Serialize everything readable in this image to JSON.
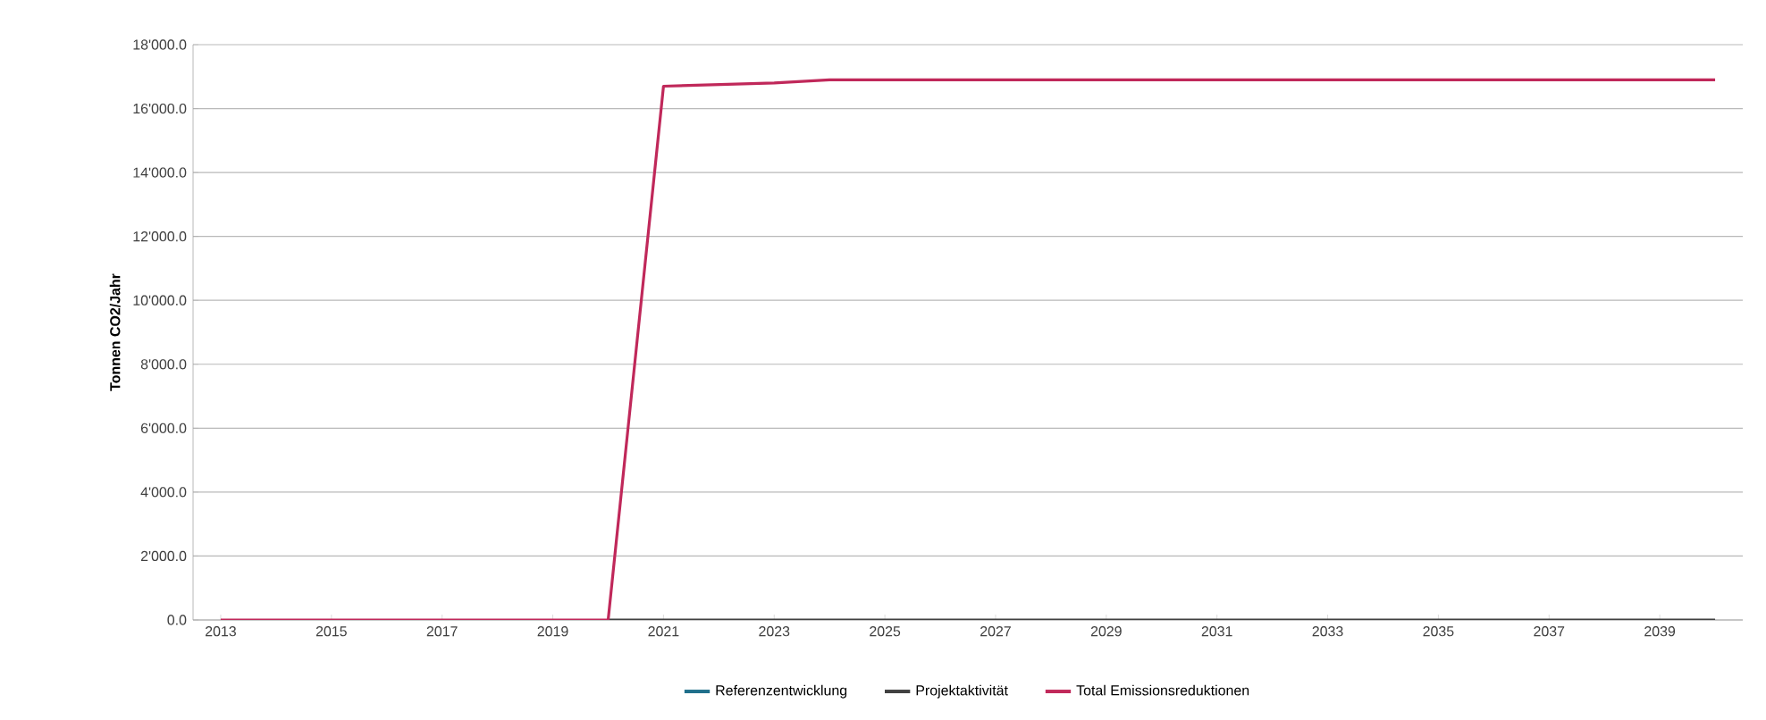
{
  "chart_data": {
    "type": "line",
    "ylabel": "Tonnen CO2/Jahr",
    "x": [
      2013,
      2014,
      2015,
      2016,
      2017,
      2018,
      2019,
      2020,
      2021,
      2022,
      2023,
      2024,
      2025,
      2026,
      2027,
      2028,
      2029,
      2030,
      2031,
      2032,
      2033,
      2034,
      2035,
      2036,
      2037,
      2038,
      2039,
      2040
    ],
    "series": [
      {
        "name": "Referenzentwicklung",
        "color": "#1f6f8b",
        "values": [
          null,
          null,
          null,
          null,
          null,
          null,
          null,
          null,
          null,
          null,
          null,
          null,
          null,
          null,
          null,
          null,
          null,
          null,
          null,
          null,
          null,
          null,
          null,
          null,
          null,
          null,
          null,
          null
        ]
      },
      {
        "name": "Projektaktivität",
        "color": "#404040",
        "values": [
          null,
          null,
          null,
          null,
          null,
          null,
          null,
          0,
          0,
          0,
          0,
          0,
          0,
          0,
          0,
          0,
          0,
          0,
          0,
          0,
          0,
          0,
          0,
          0,
          0,
          0,
          0,
          0
        ]
      },
      {
        "name": "Total Emissionsreduktionen",
        "color": "#c0285a",
        "values": [
          0,
          0,
          0,
          0,
          0,
          0,
          0,
          0,
          16700,
          16750,
          16800,
          16900,
          16900,
          16900,
          16900,
          16900,
          16900,
          16900,
          16900,
          16900,
          16900,
          16900,
          16900,
          16900,
          16900,
          16900,
          16900,
          16900
        ]
      }
    ],
    "xlim": [
      2012.5,
      2040.5
    ],
    "xticks": [
      2013,
      2015,
      2017,
      2019,
      2021,
      2023,
      2025,
      2027,
      2029,
      2031,
      2033,
      2035,
      2037,
      2039
    ],
    "ylim": [
      0,
      18000
    ],
    "yticks": [
      {
        "value": 0,
        "label": "0.0"
      },
      {
        "value": 2000,
        "label": "2'000.0"
      },
      {
        "value": 4000,
        "label": "4'000.0"
      },
      {
        "value": 6000,
        "label": "6'000.0"
      },
      {
        "value": 8000,
        "label": "8'000.0"
      },
      {
        "value": 10000,
        "label": "10'000.0"
      },
      {
        "value": 12000,
        "label": "12'000.0"
      },
      {
        "value": 14000,
        "label": "14'000.0"
      },
      {
        "value": 16000,
        "label": "16'000.0"
      },
      {
        "value": 18000,
        "label": "18'000.0"
      }
    ],
    "grid": "y",
    "legend": "bottom",
    "marker": "none",
    "line_style": "solid"
  }
}
